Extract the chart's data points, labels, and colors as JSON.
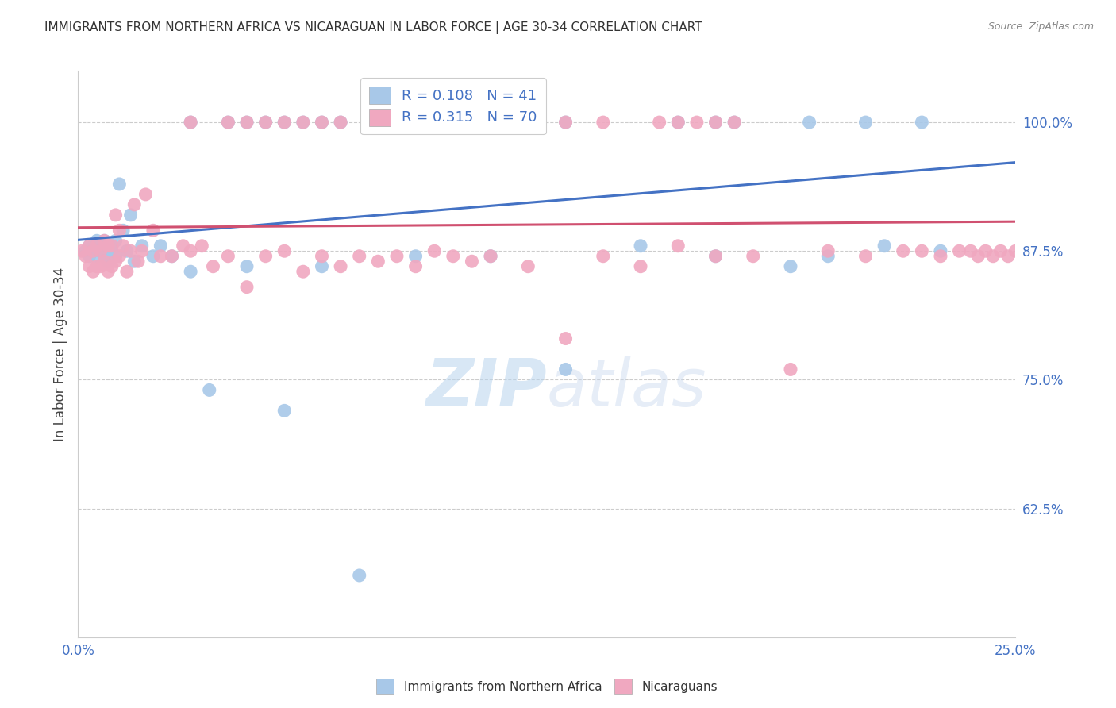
{
  "title": "IMMIGRANTS FROM NORTHERN AFRICA VS NICARAGUAN IN LABOR FORCE | AGE 30-34 CORRELATION CHART",
  "source": "Source: ZipAtlas.com",
  "ylabel": "In Labor Force | Age 30-34",
  "xlim": [
    0.0,
    0.25
  ],
  "ylim": [
    0.5,
    1.05
  ],
  "yticks": [
    0.625,
    0.75,
    0.875,
    1.0
  ],
  "ytick_labels": [
    "62.5%",
    "75.0%",
    "87.5%",
    "100.0%"
  ],
  "xticks": [
    0.0,
    0.05,
    0.1,
    0.15,
    0.2,
    0.25
  ],
  "xtick_labels": [
    "0.0%",
    "",
    "",
    "",
    "",
    "25.0%"
  ],
  "blue_color": "#a8c8e8",
  "pink_color": "#f0a8c0",
  "blue_line_color": "#4472c4",
  "pink_line_color": "#d05070",
  "legend_R1": "0.108",
  "legend_N1": "41",
  "legend_R2": "0.315",
  "legend_N2": "70",
  "blue_scatter_x": [
    0.002,
    0.003,
    0.003,
    0.004,
    0.004,
    0.005,
    0.005,
    0.006,
    0.006,
    0.007,
    0.007,
    0.008,
    0.008,
    0.009,
    0.009,
    0.01,
    0.01,
    0.011,
    0.012,
    0.013,
    0.014,
    0.015,
    0.017,
    0.02,
    0.022,
    0.025,
    0.03,
    0.035,
    0.045,
    0.055,
    0.065,
    0.075,
    0.09,
    0.11,
    0.13,
    0.15,
    0.17,
    0.19,
    0.2,
    0.215,
    0.23
  ],
  "blue_scatter_y": [
    0.875,
    0.88,
    0.87,
    0.88,
    0.875,
    0.885,
    0.87,
    0.88,
    0.875,
    0.885,
    0.87,
    0.88,
    0.865,
    0.88,
    0.875,
    0.885,
    0.87,
    0.94,
    0.895,
    0.875,
    0.91,
    0.865,
    0.88,
    0.87,
    0.88,
    0.87,
    0.855,
    0.74,
    0.86,
    0.72,
    0.86,
    0.56,
    0.87,
    0.87,
    0.76,
    0.88,
    0.87,
    0.86,
    0.87,
    0.88,
    0.875
  ],
  "pink_scatter_x": [
    0.001,
    0.002,
    0.003,
    0.003,
    0.004,
    0.004,
    0.005,
    0.005,
    0.006,
    0.006,
    0.007,
    0.007,
    0.008,
    0.008,
    0.009,
    0.009,
    0.01,
    0.01,
    0.011,
    0.011,
    0.012,
    0.013,
    0.014,
    0.015,
    0.016,
    0.017,
    0.018,
    0.02,
    0.022,
    0.025,
    0.028,
    0.03,
    0.033,
    0.036,
    0.04,
    0.045,
    0.05,
    0.055,
    0.06,
    0.065,
    0.07,
    0.075,
    0.08,
    0.085,
    0.09,
    0.095,
    0.1,
    0.105,
    0.11,
    0.12,
    0.13,
    0.14,
    0.15,
    0.16,
    0.17,
    0.18,
    0.19,
    0.2,
    0.21,
    0.22,
    0.225,
    0.23,
    0.235,
    0.238,
    0.24,
    0.242,
    0.244,
    0.246,
    0.248,
    0.25
  ],
  "pink_scatter_y": [
    0.875,
    0.87,
    0.88,
    0.86,
    0.875,
    0.855,
    0.88,
    0.86,
    0.875,
    0.86,
    0.885,
    0.865,
    0.88,
    0.855,
    0.88,
    0.86,
    0.91,
    0.865,
    0.895,
    0.87,
    0.88,
    0.855,
    0.875,
    0.92,
    0.865,
    0.875,
    0.93,
    0.895,
    0.87,
    0.87,
    0.88,
    0.875,
    0.88,
    0.86,
    0.87,
    0.84,
    0.87,
    0.875,
    0.855,
    0.87,
    0.86,
    0.87,
    0.865,
    0.87,
    0.86,
    0.875,
    0.87,
    0.865,
    0.87,
    0.86,
    0.79,
    0.87,
    0.86,
    0.88,
    0.87,
    0.87,
    0.76,
    0.875,
    0.87,
    0.875,
    0.875,
    0.87,
    0.875,
    0.875,
    0.87,
    0.875,
    0.87,
    0.875,
    0.87,
    0.875
  ],
  "top_blue_x": [
    0.03,
    0.04,
    0.045,
    0.05,
    0.055,
    0.06,
    0.065,
    0.07,
    0.08,
    0.09,
    0.095,
    0.1,
    0.11,
    0.115,
    0.13,
    0.16,
    0.17,
    0.175,
    0.195,
    0.21,
    0.225
  ],
  "top_blue_y": [
    1.0,
    1.0,
    1.0,
    1.0,
    1.0,
    1.0,
    1.0,
    1.0,
    1.0,
    1.0,
    1.0,
    1.0,
    1.0,
    1.0,
    1.0,
    1.0,
    1.0,
    1.0,
    1.0,
    1.0,
    1.0
  ],
  "top_pink_x": [
    0.03,
    0.04,
    0.045,
    0.05,
    0.055,
    0.06,
    0.065,
    0.07,
    0.08,
    0.09,
    0.095,
    0.1,
    0.11,
    0.115,
    0.13,
    0.14,
    0.155,
    0.16,
    0.165,
    0.17,
    0.175
  ],
  "top_pink_y": [
    1.0,
    1.0,
    1.0,
    1.0,
    1.0,
    1.0,
    1.0,
    1.0,
    1.0,
    1.0,
    1.0,
    1.0,
    1.0,
    1.0,
    1.0,
    1.0,
    1.0,
    1.0,
    1.0,
    1.0,
    1.0
  ]
}
